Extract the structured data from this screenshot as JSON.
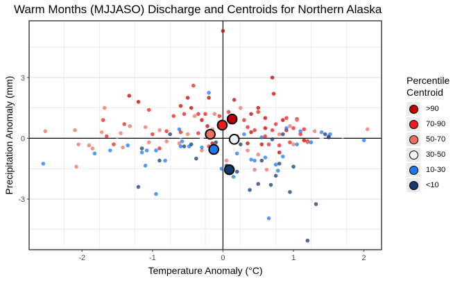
{
  "chart_data": {
    "type": "scatter",
    "title": "Warm Months (MJJASO) Discharge and Centroids for Northern Alaska",
    "xlabel": "Temperature Anomaly (°C)",
    "ylabel": "Precipitation Anomaly (mm)",
    "xlim": [
      -2.75,
      2.25
    ],
    "ylim": [
      -5.5,
      5.8
    ],
    "x_ticks": [
      -2,
      -1,
      0,
      1,
      2
    ],
    "y_ticks": [
      -3,
      0,
      3
    ],
    "grid": true,
    "legend": {
      "title": "Percentile\nCentroid",
      "placement": "right",
      "items": [
        {
          "label": ">90",
          "color": "#c00000"
        },
        {
          "label": "70-90",
          "color": "#ee1c1c"
        },
        {
          "label": "50-70",
          "color": "#f07060"
        },
        {
          "label": "30-50",
          "color": "#f2f6fb"
        },
        {
          "label": "10-30",
          "color": "#1e78f0"
        },
        {
          "label": "<10",
          "color": "#143a6e"
        }
      ]
    },
    "centroids": [
      {
        "group": ">90",
        "x": 0.13,
        "y": 0.95,
        "color": "#c00000"
      },
      {
        "group": "70-90",
        "x": -0.01,
        "y": 0.65,
        "color": "#ee1c1c"
      },
      {
        "group": "50-70",
        "x": -0.18,
        "y": 0.2,
        "color": "#f07060"
      },
      {
        "group": "30-50",
        "x": 0.16,
        "y": -0.05,
        "color": "#f2f6fb"
      },
      {
        "group": "10-30",
        "x": -0.13,
        "y": -0.55,
        "color": "#1e78f0"
      },
      {
        "group": "<10",
        "x": 0.09,
        "y": -1.55,
        "color": "#143a6e"
      }
    ],
    "series": [
      {
        "group": ">90",
        "color": "#c00000",
        "points": [
          [
            -1.33,
            2.1
          ],
          [
            -1.2,
            1.8
          ],
          [
            -0.6,
            1.6
          ],
          [
            -0.5,
            2.0
          ],
          [
            -0.45,
            1.5
          ],
          [
            -0.2,
            2.0
          ],
          [
            0.0,
            5.3
          ],
          [
            0.16,
            1.9
          ],
          [
            0.4,
            1.2
          ],
          [
            0.5,
            1.5
          ],
          [
            0.6,
            1.0
          ],
          [
            0.7,
            3.0
          ],
          [
            0.72,
            2.2
          ],
          [
            0.85,
            0.9
          ],
          [
            0.55,
            -0.3
          ],
          [
            0.6,
            0.5
          ],
          [
            1.15,
            -0.1
          ],
          [
            1.2,
            -0.15
          ],
          [
            0.35,
            -0.25
          ],
          [
            -0.3,
            0.9
          ],
          [
            -0.22,
            0.6
          ],
          [
            0.4,
            0.3
          ],
          [
            -0.15,
            -0.25
          ],
          [
            0.9,
            0.4
          ],
          [
            0.8,
            -0.7
          ]
        ]
      },
      {
        "group": "70-90",
        "color": "#ee1c1c",
        "points": [
          [
            -1.65,
            0.1
          ],
          [
            -1.7,
            0.9
          ],
          [
            -1.05,
            1.4
          ],
          [
            -0.7,
            1.1
          ],
          [
            -0.55,
            1.2
          ],
          [
            -0.42,
            2.6
          ],
          [
            -0.35,
            1.2
          ],
          [
            -0.25,
            1.2
          ],
          [
            -0.05,
            1.1
          ],
          [
            0.08,
            1.3
          ],
          [
            0.3,
            0.9
          ],
          [
            0.45,
            0.4
          ],
          [
            0.5,
            1.3
          ],
          [
            0.6,
            0.1
          ],
          [
            0.65,
            -0.3
          ],
          [
            0.75,
            0.7
          ],
          [
            0.8,
            -0.35
          ],
          [
            0.95,
            -0.2
          ],
          [
            1.0,
            0.5
          ],
          [
            1.1,
            0.2
          ],
          [
            1.05,
            0.95
          ],
          [
            1.15,
            0.45
          ],
          [
            -1.55,
            -0.3
          ],
          [
            -0.8,
            0.35
          ],
          [
            -0.35,
            0.25
          ],
          [
            -0.2,
            -0.4
          ],
          [
            0.35,
            0.55
          ],
          [
            -1.4,
            0.7
          ],
          [
            0.9,
            1.0
          ],
          [
            -0.6,
            0.3
          ],
          [
            0.2,
            0.1
          ],
          [
            0.7,
            0.4
          ],
          [
            -0.9,
            -0.5
          ],
          [
            -1.0,
            0.2
          ]
        ]
      },
      {
        "group": "50-70",
        "color": "#f07060",
        "points": [
          [
            -2.52,
            0.35
          ],
          [
            -2.1,
            0.4
          ],
          [
            -2.05,
            -0.3
          ],
          [
            -2.08,
            -1.4
          ],
          [
            -1.9,
            -0.35
          ],
          [
            -1.85,
            -0.5
          ],
          [
            -1.72,
            0.3
          ],
          [
            -1.68,
            1.5
          ],
          [
            -1.45,
            0.25
          ],
          [
            -1.42,
            -0.45
          ],
          [
            -1.32,
            0.6
          ],
          [
            -1.1,
            0.55
          ],
          [
            -1.05,
            -0.2
          ],
          [
            -0.9,
            0.4
          ],
          [
            -0.8,
            -0.15
          ],
          [
            -0.62,
            -0.25
          ],
          [
            -0.5,
            0.2
          ],
          [
            -0.4,
            1.1
          ],
          [
            -0.12,
            1.2
          ],
          [
            0.05,
            -1.1
          ],
          [
            0.35,
            -0.6
          ],
          [
            0.45,
            -1.55
          ],
          [
            0.62,
            -1.55
          ],
          [
            1.05,
            0.9
          ],
          [
            1.2,
            -0.2
          ],
          [
            1.3,
            0.35
          ],
          [
            2.05,
            0.45
          ],
          [
            0.95,
            0.6
          ],
          [
            0.8,
            0.2
          ],
          [
            0.25,
            1.5
          ],
          [
            -0.15,
            0.45
          ],
          [
            0.5,
            -0.8
          ],
          [
            1.0,
            -0.3
          ],
          [
            -0.3,
            -0.6
          ]
        ]
      },
      {
        "group": "30-50",
        "color": "#ffffff",
        "points": [
          [
            -2.0,
            -0.2
          ],
          [
            -1.5,
            -0.1
          ],
          [
            -0.95,
            -0.35
          ],
          [
            -0.75,
            -0.3
          ],
          [
            -0.3,
            -0.05
          ],
          [
            0.5,
            0.3
          ],
          [
            1.5,
            0.45
          ],
          [
            1.65,
            0.55
          ],
          [
            1.3,
            -2.0
          ],
          [
            -0.35,
            -1.2
          ],
          [
            0.95,
            -0.55
          ],
          [
            -1.75,
            -0.55
          ],
          [
            1.7,
            0.1
          ],
          [
            0.2,
            -0.7
          ],
          [
            -0.6,
            0.1
          ],
          [
            1.1,
            -0.8
          ],
          [
            0.65,
            0.15
          ],
          [
            1.4,
            0.0
          ]
        ]
      },
      {
        "group": "10-30",
        "color": "#1e78f0",
        "points": [
          [
            -2.55,
            -1.25
          ],
          [
            -1.82,
            -0.75
          ],
          [
            -1.6,
            -0.6
          ],
          [
            -1.35,
            -0.35
          ],
          [
            -1.15,
            -0.7
          ],
          [
            -1.08,
            -0.6
          ],
          [
            -0.95,
            -0.6
          ],
          [
            -1.1,
            -1.35
          ],
          [
            -0.82,
            -1.1
          ],
          [
            -0.62,
            0.45
          ],
          [
            -0.58,
            -0.15
          ],
          [
            -0.48,
            -0.4
          ],
          [
            -0.3,
            -0.45
          ],
          [
            -0.2,
            2.25
          ],
          [
            -0.02,
            -1.5
          ],
          [
            0.2,
            -0.75
          ],
          [
            0.4,
            -1.05
          ],
          [
            0.55,
            0.05
          ],
          [
            0.65,
            -3.95
          ],
          [
            0.6,
            -0.95
          ],
          [
            0.78,
            -1.6
          ],
          [
            0.85,
            -0.9
          ],
          [
            0.9,
            0.5
          ],
          [
            1.05,
            -0.3
          ],
          [
            1.25,
            -0.2
          ],
          [
            1.4,
            0.3
          ],
          [
            1.5,
            0.1
          ],
          [
            1.52,
            0.2
          ],
          [
            2.0,
            -0.1
          ],
          [
            0.3,
            0.2
          ],
          [
            -0.6,
            -0.4
          ],
          [
            0.75,
            -1.3
          ],
          [
            -0.95,
            -2.75
          ],
          [
            0.45,
            -1.1
          ],
          [
            1.1,
            0.35
          ],
          [
            0.15,
            -1.9
          ]
        ]
      },
      {
        "group": "<10",
        "color": "#143a6e",
        "points": [
          [
            -1.2,
            -2.4
          ],
          [
            -1.15,
            -0.5
          ],
          [
            -0.9,
            -1.1
          ],
          [
            -0.75,
            0.2
          ],
          [
            -0.55,
            -0.4
          ],
          [
            -0.45,
            -0.3
          ],
          [
            -0.38,
            -1.0
          ],
          [
            0.05,
            -1.35
          ],
          [
            0.15,
            -0.1
          ],
          [
            0.2,
            -1.65
          ],
          [
            0.38,
            -2.55
          ],
          [
            0.5,
            -2.25
          ],
          [
            0.55,
            -1.1
          ],
          [
            0.68,
            -2.3
          ],
          [
            0.7,
            -0.05
          ],
          [
            0.75,
            -1.85
          ],
          [
            0.85,
            0.2
          ],
          [
            0.95,
            -2.65
          ],
          [
            1.0,
            -1.4
          ],
          [
            1.2,
            -5.05
          ],
          [
            1.32,
            -3.25
          ],
          [
            1.45,
            0.2
          ],
          [
            1.5,
            0.05
          ],
          [
            0.25,
            -0.3
          ],
          [
            0.8,
            -1.25
          ],
          [
            -0.1,
            -0.2
          ]
        ]
      }
    ]
  }
}
